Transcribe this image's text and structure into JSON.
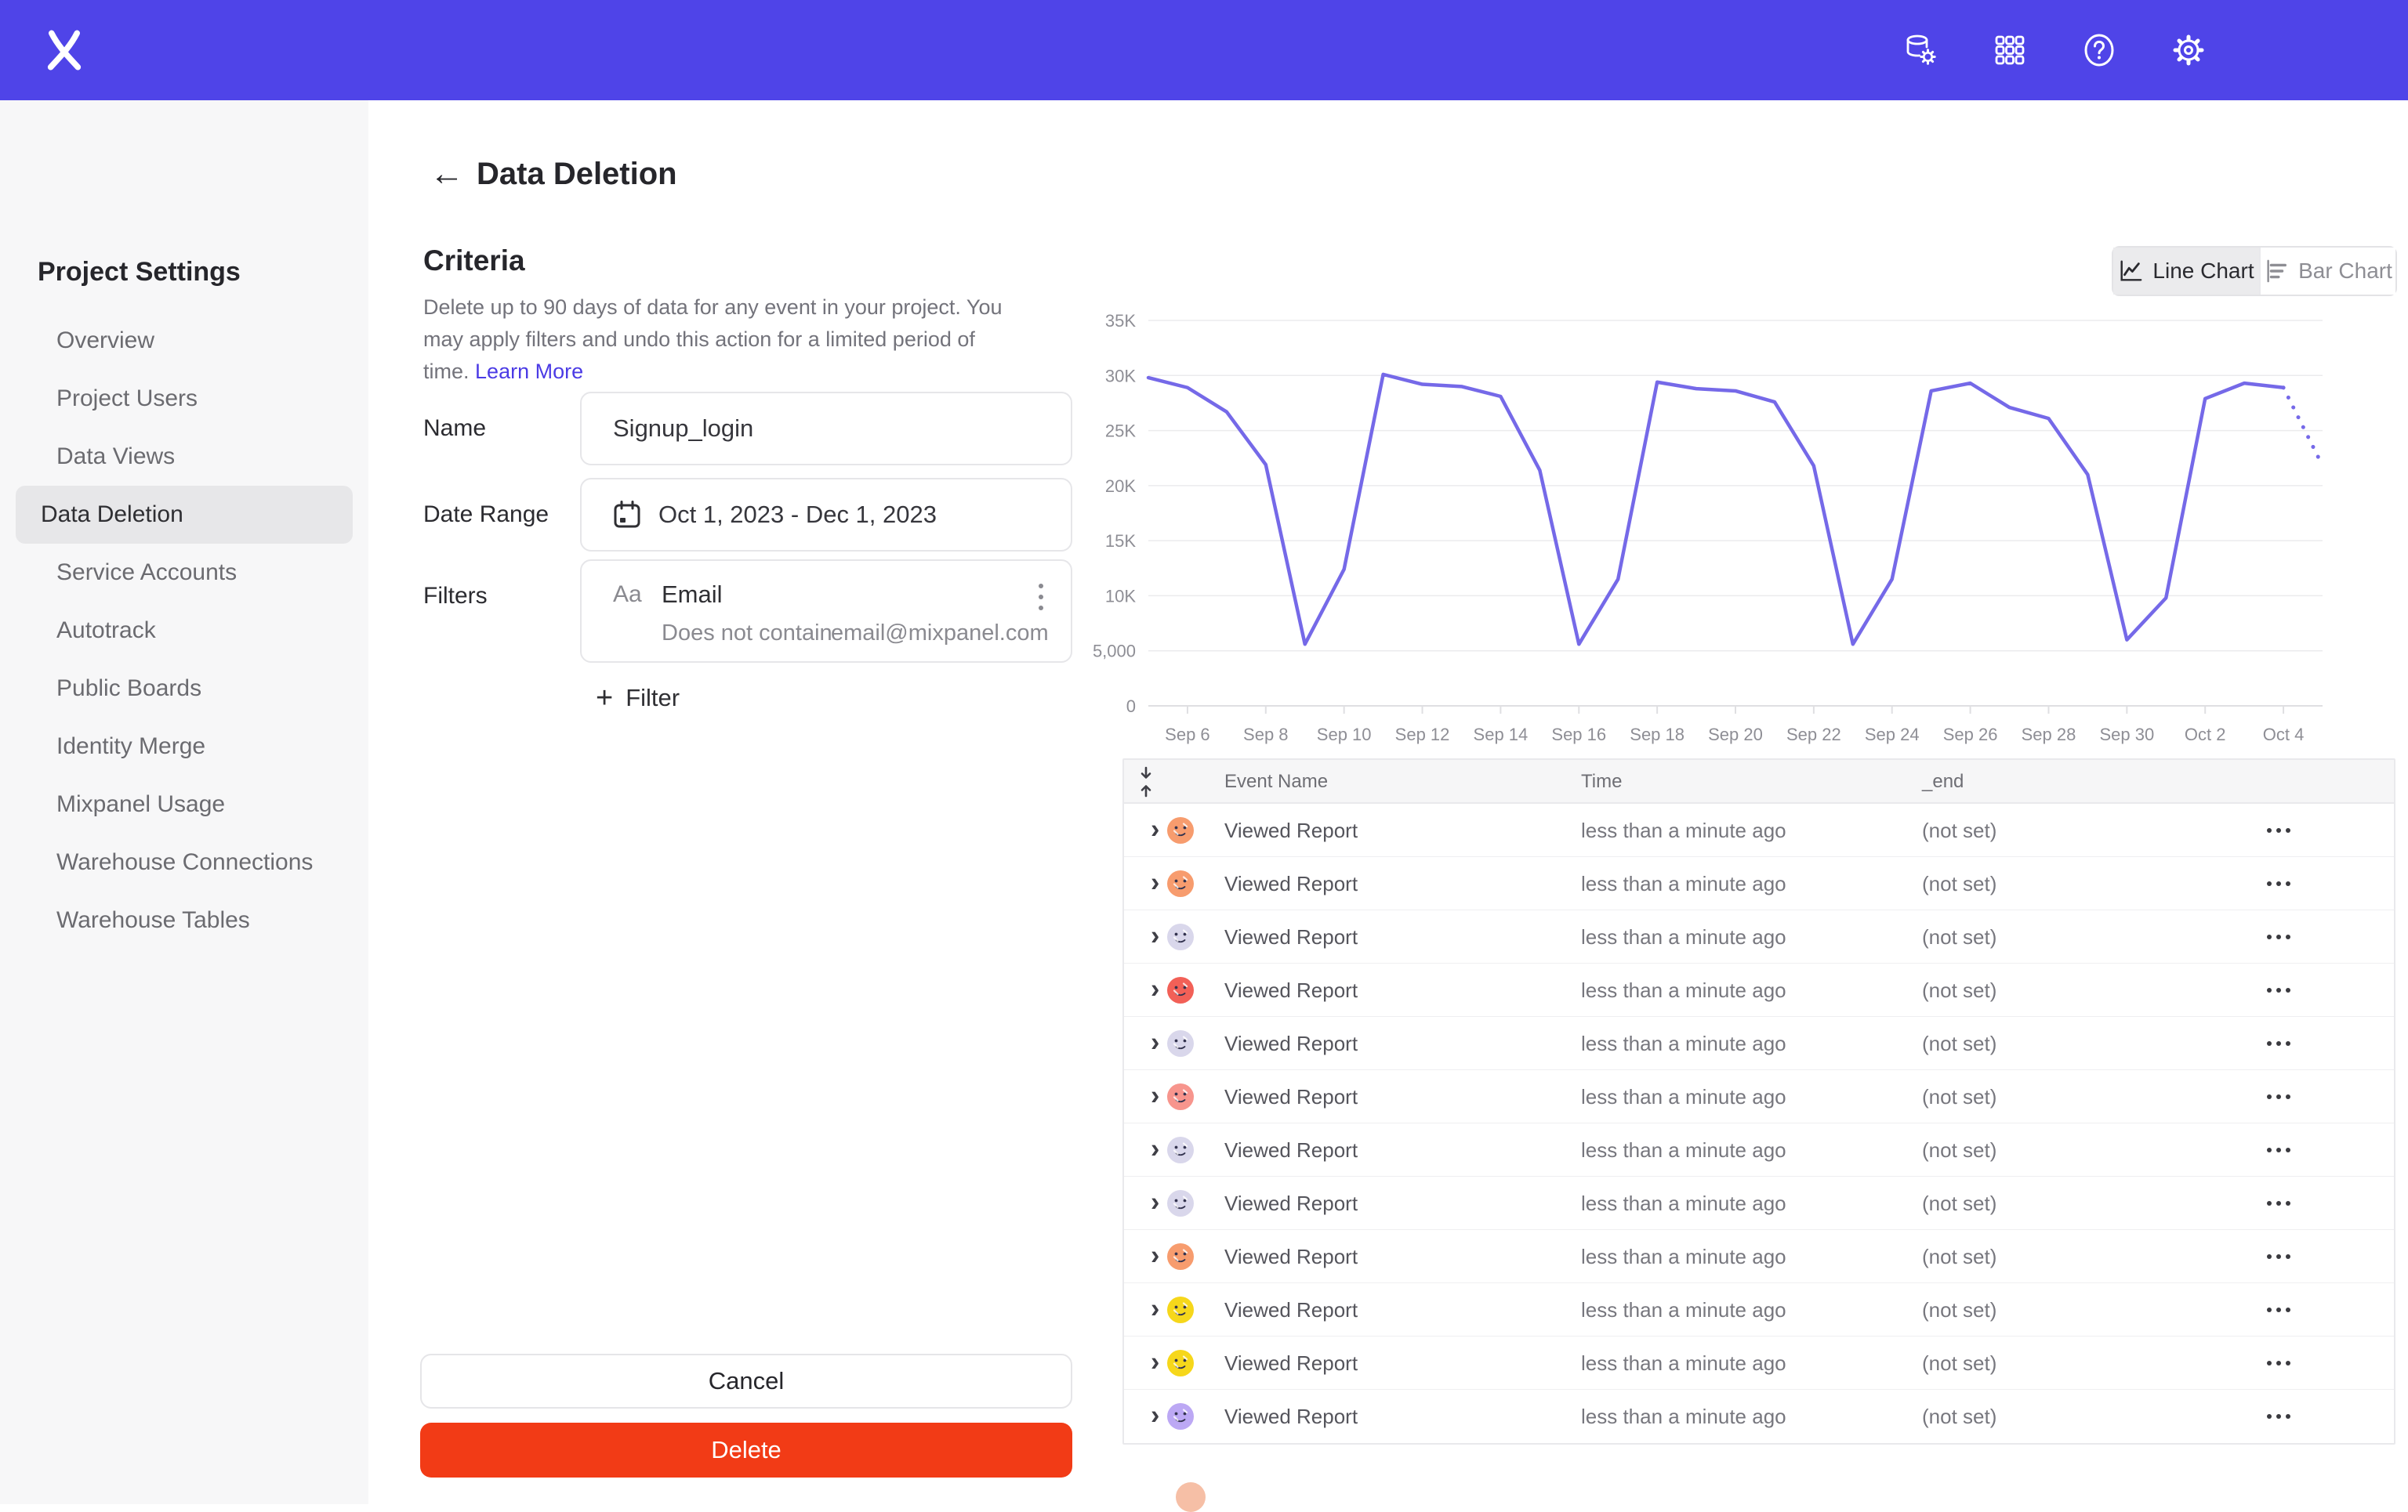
{
  "topbar": {
    "icons": [
      "data-pipeline-icon",
      "apps-grid-icon",
      "help-icon",
      "settings-gear-icon"
    ],
    "bg_color": "#4F44E8"
  },
  "sidebar": {
    "title": "Project Settings",
    "selected_index": 3,
    "items": [
      "Overview",
      "Project Users",
      "Data Views",
      "Data Deletion",
      "Service Accounts",
      "Autotrack",
      "Public Boards",
      "Identity Merge",
      "Mixpanel Usage",
      "Warehouse Connections",
      "Warehouse Tables"
    ]
  },
  "page": {
    "back_arrow": "←",
    "title": "Data Deletion"
  },
  "criteria": {
    "heading": "Criteria",
    "description": "Delete up to 90 days of data for any event in your project. You may apply filters and undo this action for a limited period of time.",
    "learn_more": "Learn More"
  },
  "form": {
    "name_label": "Name",
    "name_value": "Signup_login",
    "date_label": "Date Range",
    "date_value": "Oct 1, 2023 - Dec 1, 2023",
    "filters_label": "Filters",
    "filter": {
      "type_badge": "Aa",
      "property": "Email",
      "operator": "Does not contain",
      "value": "email@mixpanel.com"
    },
    "add_filter_plus": "+",
    "add_filter_label": "Filter"
  },
  "actions": {
    "cancel_label": "Cancel",
    "delete_label": "Delete",
    "delete_color": "#F23B16"
  },
  "chart_toggle": {
    "options": [
      {
        "label": "Line Chart",
        "selected": true
      },
      {
        "label": "Bar Chart",
        "selected": false
      }
    ]
  },
  "chart_data": {
    "type": "line",
    "title": "",
    "xlabel": "",
    "ylabel": "",
    "ylim": [
      0,
      35000
    ],
    "grid": true,
    "legend": null,
    "line_color": "#7569E8",
    "x_start": "Sep 5",
    "x_end": "Oct 5",
    "values": [
      29800,
      28900,
      26700,
      21900,
      5600,
      12400,
      30100,
      29200,
      29000,
      28100,
      21400,
      5600,
      11500,
      29400,
      28800,
      28600,
      27600,
      21800,
      5600,
      11500,
      28600,
      29300,
      27100,
      26100,
      21000,
      6000,
      9800,
      27900,
      29300,
      28900,
      21800
    ],
    "dotted_from_index": 29,
    "x_tick_positions": [
      1,
      3,
      5,
      7,
      9,
      11,
      13,
      15,
      17,
      19,
      21,
      23,
      25,
      27,
      29
    ],
    "x_tick_labels": [
      "Sep 6",
      "Sep 8",
      "Sep 10",
      "Sep 12",
      "Sep 14",
      "Sep 16",
      "Sep 18",
      "Sep 20",
      "Sep 22",
      "Sep 24",
      "Sep 26",
      "Sep 28",
      "Sep 30",
      "Oct 2",
      "Oct 4"
    ],
    "y_tick_values": [
      0,
      5000,
      10000,
      15000,
      20000,
      25000,
      30000,
      35000
    ],
    "y_tick_labels": [
      "0",
      "5,000",
      "10K",
      "15K",
      "20K",
      "25K",
      "30K",
      "35K"
    ]
  },
  "table": {
    "headers": [
      "Event Name",
      "Time",
      "_end"
    ],
    "rows": [
      {
        "event": "Viewed Report",
        "time": "less than a minute ago",
        "end": "(not set)",
        "avatar_color": "#F79C6E"
      },
      {
        "event": "Viewed Report",
        "time": "less than a minute ago",
        "end": "(not set)",
        "avatar_color": "#F79C6E"
      },
      {
        "event": "Viewed Report",
        "time": "less than a minute ago",
        "end": "(not set)",
        "avatar_color": "#D9D7EB"
      },
      {
        "event": "Viewed Report",
        "time": "less than a minute ago",
        "end": "(not set)",
        "avatar_color": "#F26057"
      },
      {
        "event": "Viewed Report",
        "time": "less than a minute ago",
        "end": "(not set)",
        "avatar_color": "#D9D7EB"
      },
      {
        "event": "Viewed Report",
        "time": "less than a minute ago",
        "end": "(not set)",
        "avatar_color": "#F7958D"
      },
      {
        "event": "Viewed Report",
        "time": "less than a minute ago",
        "end": "(not set)",
        "avatar_color": "#D9D7EB"
      },
      {
        "event": "Viewed Report",
        "time": "less than a minute ago",
        "end": "(not set)",
        "avatar_color": "#D9D7EB"
      },
      {
        "event": "Viewed Report",
        "time": "less than a minute ago",
        "end": "(not set)",
        "avatar_color": "#F79C6E"
      },
      {
        "event": "Viewed Report",
        "time": "less than a minute ago",
        "end": "(not set)",
        "avatar_color": "#F6D71B"
      },
      {
        "event": "Viewed Report",
        "time": "less than a minute ago",
        "end": "(not set)",
        "avatar_color": "#F6D71B"
      },
      {
        "event": "Viewed Report",
        "time": "less than a minute ago",
        "end": "(not set)",
        "avatar_color": "#BCA8F4"
      }
    ],
    "partial_row_avatar_color": "#F6BFA6"
  }
}
